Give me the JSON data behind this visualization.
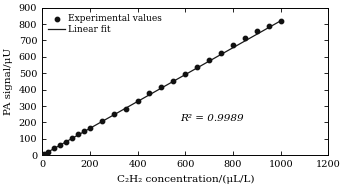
{
  "title": "",
  "xlabel": "C₂H₂ concentration/(μL/L)",
  "ylabel": "PA signal/μU",
  "xlim": [
    0,
    1200
  ],
  "ylim": [
    0,
    900
  ],
  "xticks": [
    0,
    200,
    400,
    600,
    800,
    1000,
    1200
  ],
  "yticks": [
    0,
    100,
    200,
    300,
    400,
    500,
    600,
    700,
    800,
    900
  ],
  "x_data": [
    10,
    25,
    50,
    75,
    100,
    125,
    150,
    175,
    200,
    250,
    300,
    350,
    400,
    450,
    500,
    550,
    600,
    650,
    700,
    750,
    800,
    850,
    900,
    950,
    1000
  ],
  "y_data": [
    8,
    20,
    42,
    62,
    83,
    105,
    130,
    148,
    168,
    210,
    253,
    285,
    330,
    380,
    415,
    455,
    498,
    540,
    580,
    625,
    670,
    715,
    760,
    790,
    820
  ],
  "fit_x": [
    0,
    1000
  ],
  "fit_y": [
    0,
    820
  ],
  "r_squared": "R² = 0.9989",
  "r_squared_x": 580,
  "r_squared_y": 210,
  "legend_marker": "Experimental values",
  "legend_line": "Linear fit",
  "line_color": "#1a1a1a",
  "marker_color": "#111111",
  "bg_color": "#ffffff",
  "font_size": 7.5,
  "marker_size": 10
}
